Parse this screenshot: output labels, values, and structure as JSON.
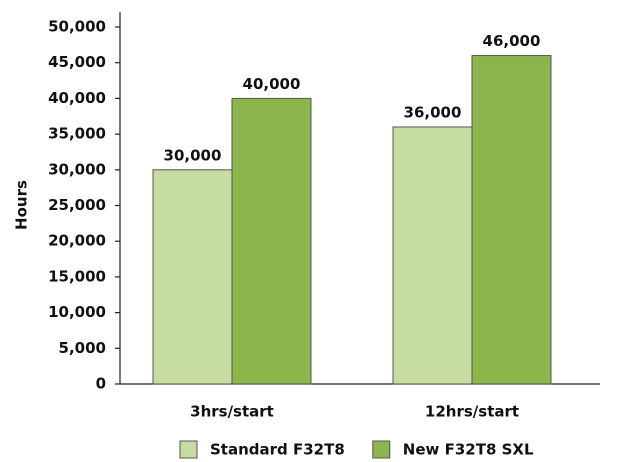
{
  "chart_data": {
    "type": "bar",
    "y_label": "Hours",
    "categories": [
      "3hrs/start",
      "12hrs/start"
    ],
    "series": [
      {
        "name": "Standard F32T8",
        "color": "#c6dca1",
        "values": [
          30000,
          36000
        ],
        "value_labels": [
          "30,000",
          "36,000"
        ]
      },
      {
        "name": "New F32T8 SXL",
        "color": "#8cb64c",
        "values": [
          40000,
          46000
        ],
        "value_labels": [
          "40,000",
          "46,000"
        ]
      }
    ],
    "ylim": [
      0,
      50000
    ],
    "yticks": [
      0,
      {
        "value": 5000,
        "label": "5,000"
      },
      {
        "value": 10000,
        "label": "10,000"
      },
      {
        "value": 15000,
        "label": "15,000"
      },
      {
        "value": 20000,
        "label": "20,000"
      },
      {
        "value": 25000,
        "label": "25,000"
      },
      {
        "value": 30000,
        "label": "30,000"
      },
      {
        "value": 35000,
        "label": "35,000"
      },
      {
        "value": 40000,
        "label": "40,000"
      },
      {
        "value": 45000,
        "label": "45,000"
      },
      {
        "value": 50000,
        "label": "50,000"
      }
    ],
    "grid": false,
    "legend": "bottom"
  }
}
